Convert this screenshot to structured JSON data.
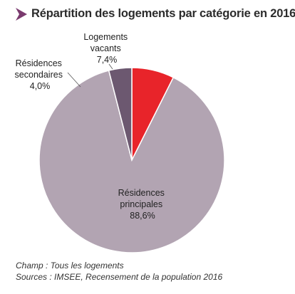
{
  "chart_data": {
    "type": "pie",
    "title": "Répartition des logements par catégorie en 2016",
    "slices": [
      {
        "label_lines": [
          "Logements",
          "vacants"
        ],
        "value_label": "7,4%",
        "value": 7.4,
        "color": "#e8242a"
      },
      {
        "label_lines": [
          "Résidences",
          "principales"
        ],
        "value_label": "88,6%",
        "value": 88.6,
        "color": "#b2a4b2"
      },
      {
        "label_lines": [
          "Résidences",
          "secondaires"
        ],
        "value_label": "4,0%",
        "value": 4.0,
        "color": "#6c5870"
      }
    ],
    "start": "12 o'clock",
    "direction": "clockwise",
    "title_marker_color": "#7a3a6e"
  },
  "notes": {
    "champ": "Champ : Tous les logements",
    "sources": "Sources : IMSEE, Recensement de la population 2016"
  }
}
